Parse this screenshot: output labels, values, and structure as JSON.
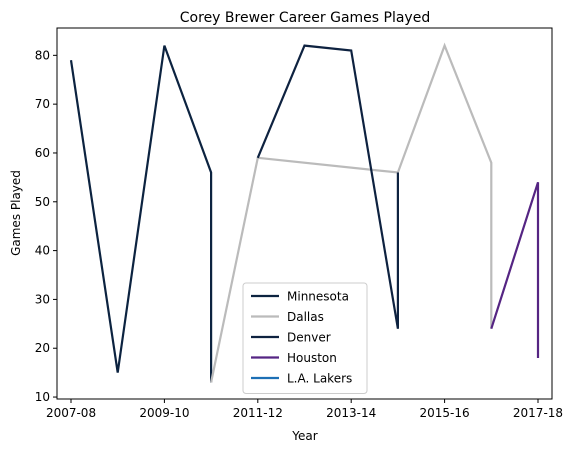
{
  "chart_data": {
    "type": "line",
    "title": "Corey Brewer Career Games Played",
    "xlabel": "Year",
    "ylabel": "Games Played",
    "xlim": [
      -0.3,
      10.3
    ],
    "ylim": [
      9.6,
      85.6
    ],
    "xticks": [
      {
        "pos": 0,
        "label": "2007-08"
      },
      {
        "pos": 2,
        "label": "2009-10"
      },
      {
        "pos": 4,
        "label": "2011-12"
      },
      {
        "pos": 6,
        "label": "2013-14"
      },
      {
        "pos": 8,
        "label": "2015-16"
      },
      {
        "pos": 10,
        "label": "2017-18"
      }
    ],
    "yticks": [
      10,
      20,
      30,
      40,
      50,
      60,
      70,
      80
    ],
    "grid": false,
    "legend_position": "lower-center",
    "series": [
      {
        "name": "Minnesota",
        "color": "#0c2340",
        "points": [
          [
            0,
            79
          ],
          [
            1,
            15
          ],
          [
            2,
            82
          ],
          [
            3,
            56
          ],
          [
            3,
            13
          ]
        ]
      },
      {
        "name": "Dallas",
        "color": "#bbbbbb",
        "points": [
          [
            3,
            13
          ],
          [
            4,
            59
          ],
          [
            7,
            56
          ],
          [
            8,
            82
          ],
          [
            9,
            58
          ],
          [
            9,
            24
          ]
        ]
      },
      {
        "name": "Denver",
        "color": "#0e2240",
        "points": [
          [
            4,
            59
          ],
          [
            5,
            82
          ],
          [
            6,
            81
          ],
          [
            7,
            24
          ],
          [
            7,
            56
          ]
        ]
      },
      {
        "name": "Houston",
        "color": "#552583",
        "points": [
          [
            9,
            24
          ],
          [
            10,
            54
          ],
          [
            10,
            18
          ]
        ]
      },
      {
        "name": "L.A. Lakers",
        "color": "#1d6fb5",
        "points": []
      }
    ]
  }
}
